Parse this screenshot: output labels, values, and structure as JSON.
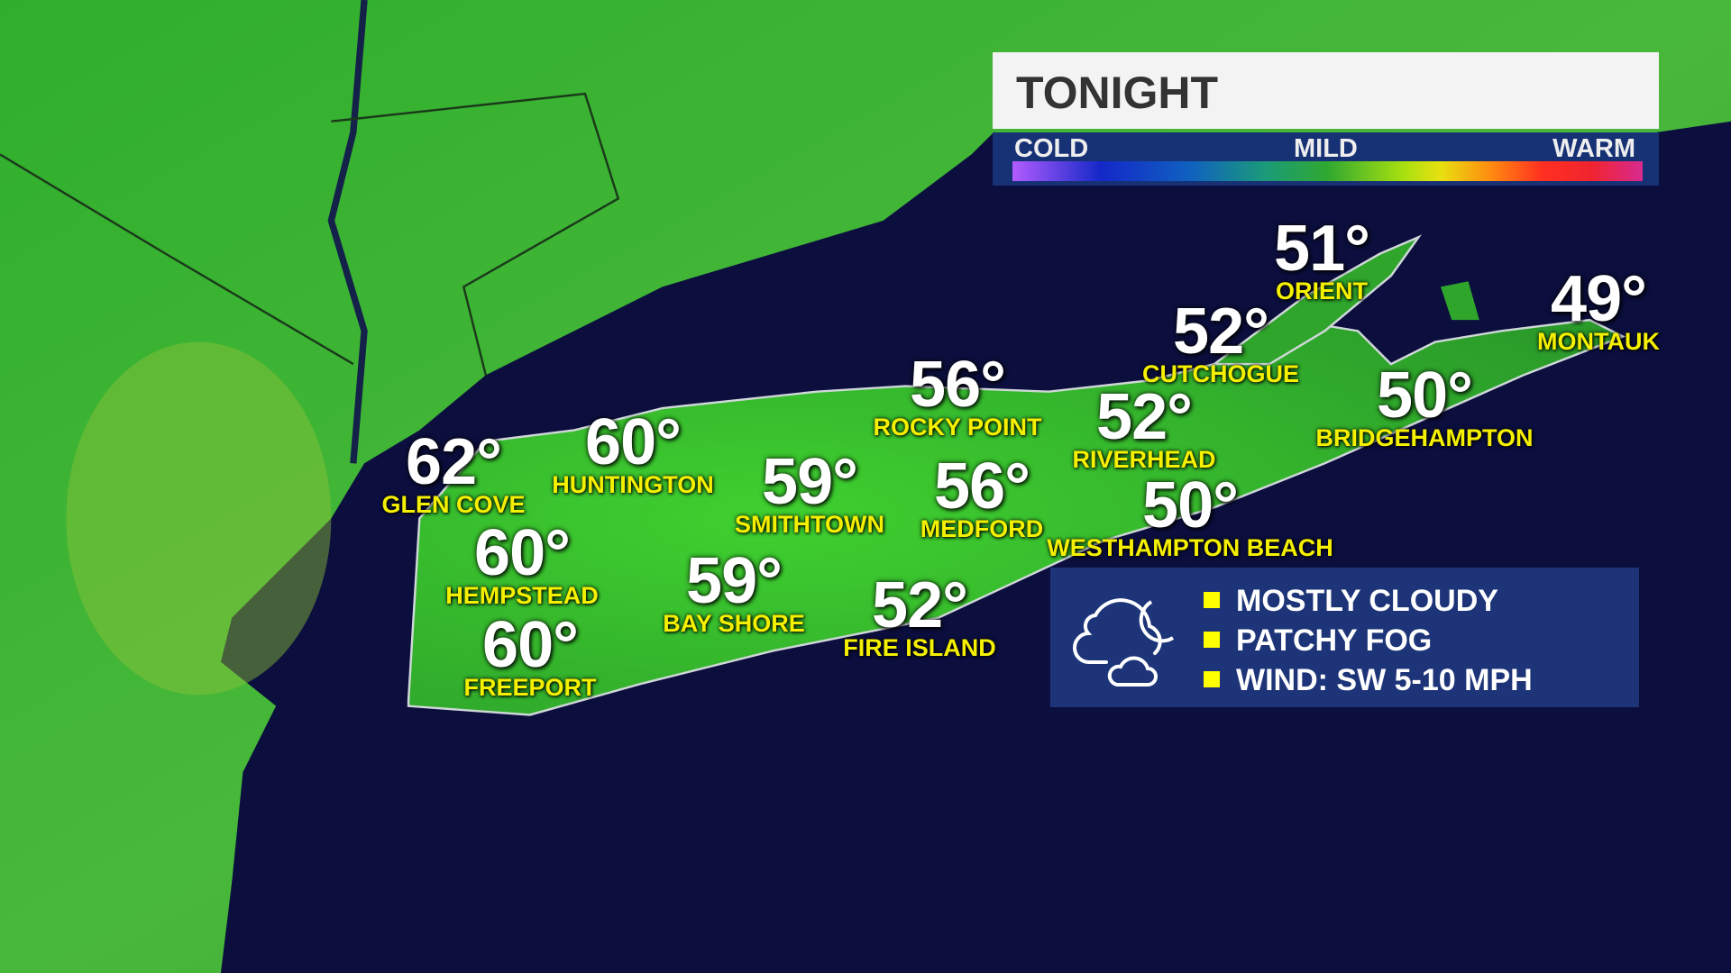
{
  "header": {
    "title": "TONIGHT"
  },
  "legend": {
    "cold": "COLD",
    "mild": "MILD",
    "warm": "WARM",
    "colors": [
      "#b35cff",
      "#1428c8",
      "#1a9a7a",
      "#30a830",
      "#e8e010",
      "#ff8a10",
      "#f02430",
      "#d82a90"
    ]
  },
  "cities": [
    {
      "name": "GLEN COVE",
      "temp": "62°"
    },
    {
      "name": "HUNTINGTON",
      "temp": "60°"
    },
    {
      "name": "SMITHTOWN",
      "temp": "59°"
    },
    {
      "name": "ROCKY POINT",
      "temp": "56°"
    },
    {
      "name": "MEDFORD",
      "temp": "56°"
    },
    {
      "name": "RIVERHEAD",
      "temp": "52°"
    },
    {
      "name": "CUTCHOGUE",
      "temp": "52°"
    },
    {
      "name": "ORIENT",
      "temp": "51°"
    },
    {
      "name": "MONTAUK",
      "temp": "49°"
    },
    {
      "name": "BRIDGEHAMPTON",
      "temp": "50°"
    },
    {
      "name": "WESTHAMPTON BEACH",
      "temp": "50°"
    },
    {
      "name": "HEMPSTEAD",
      "temp": "60°"
    },
    {
      "name": "BAY SHORE",
      "temp": "59°"
    },
    {
      "name": "FIRE ISLAND",
      "temp": "52°"
    },
    {
      "name": "FREEPORT",
      "temp": "60°"
    }
  ],
  "conditions": {
    "icon": "partly-cloudy-night-icon",
    "items": [
      "MOSTLY CLOUDY",
      "PATCHY FOG",
      "WIND: SW 5-10 MPH"
    ],
    "bullet_color": "#ffff00"
  },
  "colors": {
    "land": "#3fb83a",
    "water": "#0c0f3e",
    "panel": "#1d3578"
  }
}
